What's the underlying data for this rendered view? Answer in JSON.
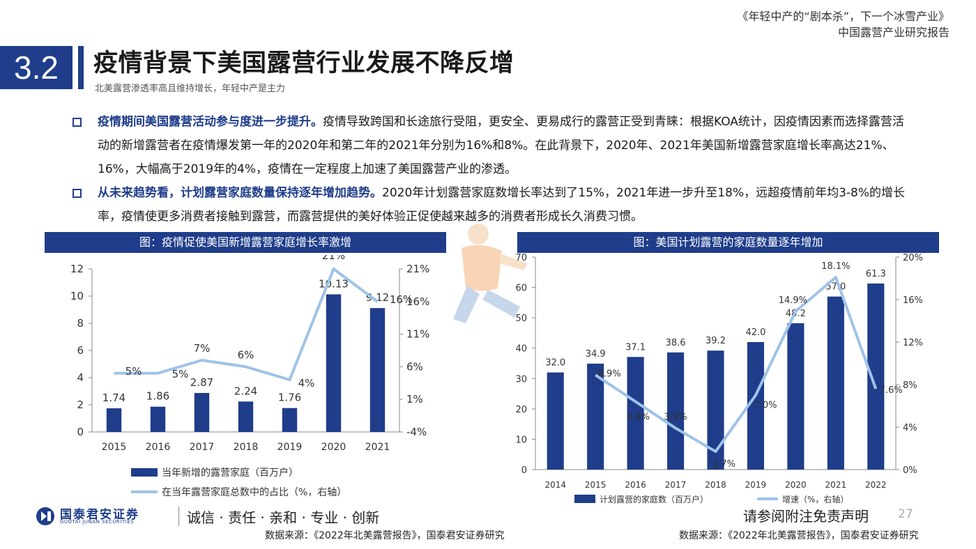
{
  "header": {
    "report_line1": "《年轻中产的“剧本杀”，下一个冰雪产业》",
    "report_line2": "中国露营产业研究报告"
  },
  "section": {
    "number": "3.2",
    "title": "疫情背景下美国露营行业发展不降反增",
    "subtitle": "北美露营渗透率高且维持增长，年轻中产是主力"
  },
  "bullets": [
    {
      "lead": "疫情期间美国露营活动参与度进一步提升。",
      "text": "疫情导致跨国和长途旅行受阻，更安全、更易成行的露营正受到青睐：根据KOA统计，因疫情因素而选择露营活动的新增露营者在疫情爆发第一年的2020年和第二年的2021年分别为16%和8%。在此背景下，2020年、2021年美国新增露营家庭增长率高达21%、16%，大幅高于2019年的4%，疫情在一定程度上加速了美国露营产业的渗透。"
    },
    {
      "lead": "从未来趋势看，计划露营家庭数量保持逐年增加趋势。",
      "text": "2020年计划露营家庭数增长率达到了15%，2021年进一步升至18%，远超疫情前年均3-8%的增长率，疫情使更多消费者接触到露营，而露营提供的美好体验正促使越来越多的消费者形成长久消费习惯。"
    }
  ],
  "chart_data": [
    {
      "type": "bar",
      "title": "图：疫情促使美国新增露营家庭增长率激增",
      "categories": [
        "2015",
        "2016",
        "2017",
        "2018",
        "2019",
        "2020",
        "2021"
      ],
      "series": [
        {
          "name": "当年新增的露营家庭（百万户）",
          "type": "bar",
          "axis": "left",
          "values": [
            1.74,
            1.86,
            2.87,
            2.24,
            1.76,
            10.13,
            9.12
          ],
          "labels": [
            "1.74",
            "1.86",
            "2.87",
            "2.24",
            "1.76",
            "10.13",
            "9.12"
          ]
        },
        {
          "name": "在当年露营家庭总数中的占比（%，右轴）",
          "type": "line",
          "axis": "right",
          "values": [
            5,
            5,
            7,
            6,
            4,
            21,
            16
          ],
          "labels": [
            "5%",
            "5%",
            "7%",
            "6%",
            "4%",
            "21%",
            "16%"
          ]
        }
      ],
      "ylim": [
        0,
        12
      ],
      "yticks": [
        "0",
        "2",
        "4",
        "6",
        "8",
        "10",
        "12"
      ],
      "y2lim": [
        -4,
        21
      ],
      "y2ticks": [
        "-4%",
        "1%",
        "6%",
        "11%",
        "16%",
        "21%"
      ],
      "legend": "bottom",
      "bar_color": "#1f3d8a",
      "line_color": "#9ec3e8",
      "source": "数据来源：《2022年北美露营报告》，国泰君安证券研究"
    },
    {
      "type": "bar",
      "title": "图：美国计划露营的家庭数量逐年增加",
      "categories": [
        "2014",
        "2015",
        "2016",
        "2017",
        "2018",
        "2019",
        "2020",
        "2021",
        "2022"
      ],
      "series": [
        {
          "name": "计划露营的家庭数（百万户）",
          "type": "bar",
          "axis": "left",
          "values": [
            32.0,
            34.9,
            37.1,
            38.6,
            39.2,
            42.0,
            48.2,
            57.0,
            61.3
          ],
          "labels": [
            "32.0",
            "34.9",
            "37.1",
            "38.6",
            "39.2",
            "42.0",
            "48.2",
            "57.0",
            "61.3"
          ]
        },
        {
          "name": "增速（%，右轴）",
          "type": "line",
          "axis": "right",
          "x": [
            "2015",
            "2016",
            "2017",
            "2018",
            "2019",
            "2020",
            "2021",
            "2022"
          ],
          "values": [
            8.9,
            6.4,
            3.9,
            1.7,
            7.0,
            14.9,
            18.1,
            7.6
          ],
          "labels": [
            "8.9%",
            "6.4%",
            "3.9%",
            "1.7%",
            "7.0%",
            "14.9%",
            "18.1%",
            "7.6%"
          ]
        }
      ],
      "ylim": [
        0,
        70
      ],
      "yticks": [
        "0",
        "10",
        "20",
        "30",
        "40",
        "50",
        "60",
        "70"
      ],
      "y2lim": [
        0,
        20
      ],
      "y2ticks": [
        "0%",
        "4%",
        "8%",
        "12%",
        "16%",
        "20%"
      ],
      "legend": "bottom",
      "bar_color": "#1f3d8a",
      "line_color": "#9ec3e8",
      "source": "数据来源：《2022年北美露营报告》，国泰君安证券研究"
    }
  ],
  "footer": {
    "logo_name": "国泰君安证券",
    "logo_sub": "GUOTAI JUNAN SECURITIES",
    "motto": "诚信 · 责任 · 亲和 · 专业 · 创新",
    "disclaimer": "请参阅附注免责声明",
    "page": "27"
  },
  "icons": [
    "logo-mark-icon",
    "runner-watermark-icon",
    "bullet-square-icon"
  ]
}
